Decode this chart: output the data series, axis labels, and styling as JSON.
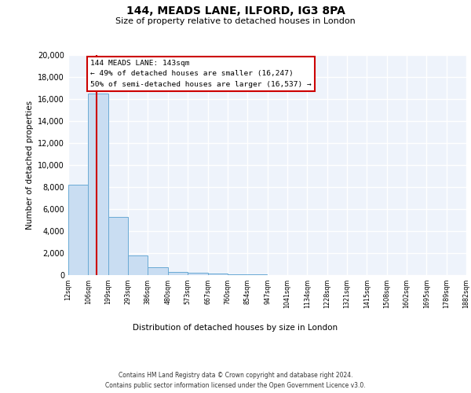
{
  "title": "144, MEADS LANE, ILFORD, IG3 8PA",
  "subtitle": "Size of property relative to detached houses in London",
  "xlabel": "Distribution of detached houses by size in London",
  "ylabel": "Number of detached properties",
  "bar_color": "#c9ddf2",
  "bar_edge_color": "#6aaad4",
  "background_color": "#eef3fb",
  "grid_color": "#ffffff",
  "vline_x": 143,
  "vline_color": "#cc0000",
  "annotation_title": "144 MEADS LANE: 143sqm",
  "annotation_line1": "← 49% of detached houses are smaller (16,247)",
  "annotation_line2": "50% of semi-detached houses are larger (16,537) →",
  "bin_edges": [
    12,
    106,
    199,
    293,
    386,
    480,
    573,
    667,
    760,
    854,
    947,
    1041,
    1134,
    1228,
    1321,
    1415,
    1508,
    1602,
    1695,
    1789,
    1882
  ],
  "bin_heights": [
    8200,
    16500,
    5300,
    1800,
    750,
    300,
    200,
    130,
    100,
    50,
    30,
    20,
    10,
    5,
    3,
    2,
    2,
    1,
    1,
    1
  ],
  "ylim": [
    0,
    20000
  ],
  "yticks": [
    0,
    2000,
    4000,
    6000,
    8000,
    10000,
    12000,
    14000,
    16000,
    18000,
    20000
  ],
  "footer_line1": "Contains HM Land Registry data © Crown copyright and database right 2024.",
  "footer_line2": "Contains public sector information licensed under the Open Government Licence v3.0."
}
